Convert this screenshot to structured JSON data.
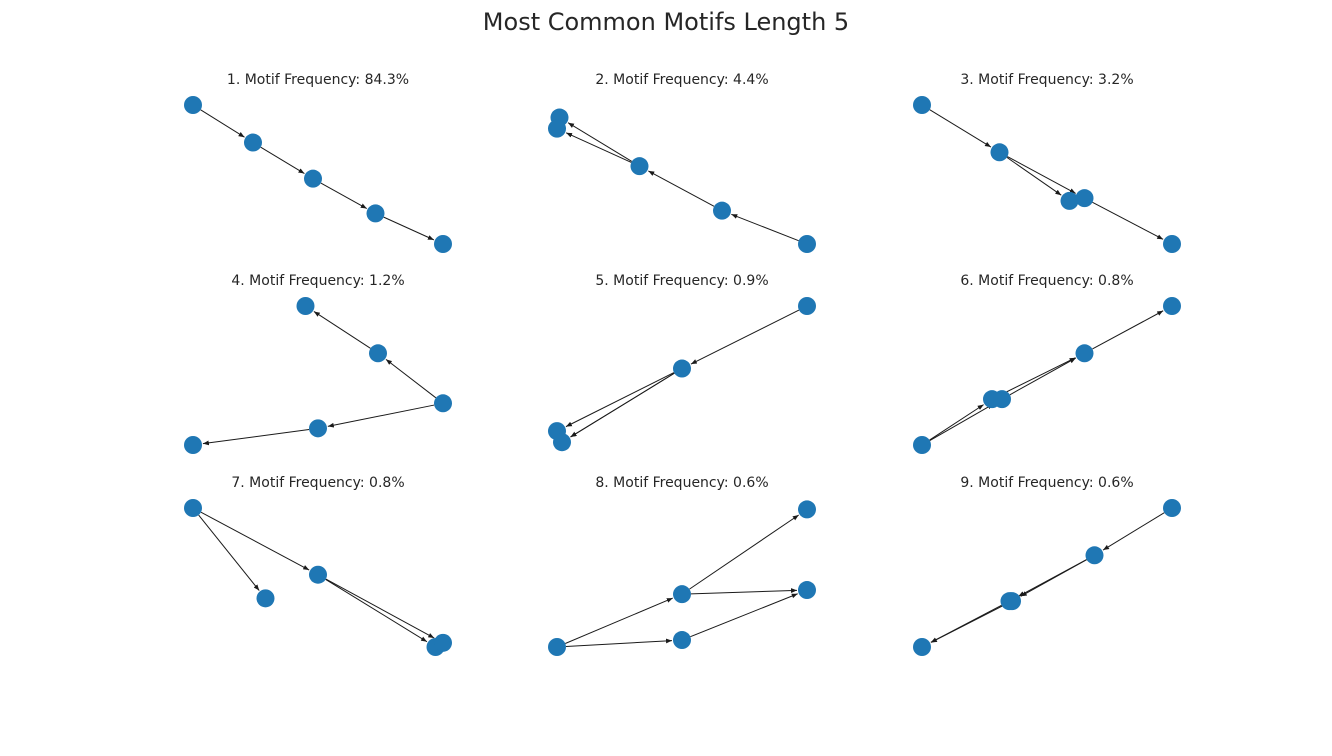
{
  "title": "Most Common Motifs Length 5",
  "style": {
    "node_color": "#1f77b4",
    "edge_color": "#1a1a1a"
  },
  "motifs": [
    {
      "label": "1. Motif Frequency: 84.3%",
      "nodes": [
        [
          0.0,
          1.0
        ],
        [
          0.24,
          0.73
        ],
        [
          0.48,
          0.47
        ],
        [
          0.73,
          0.22
        ],
        [
          1.0,
          0.0
        ]
      ],
      "edges": [
        [
          0,
          1
        ],
        [
          1,
          2
        ],
        [
          2,
          3
        ],
        [
          3,
          4
        ]
      ]
    },
    {
      "label": "2. Motif Frequency: 4.4%",
      "nodes": [
        [
          0.01,
          0.91
        ],
        [
          0.0,
          0.83
        ],
        [
          0.33,
          0.56
        ],
        [
          0.66,
          0.24
        ],
        [
          1.0,
          0.0
        ]
      ],
      "edges": [
        [
          2,
          0
        ],
        [
          2,
          1
        ],
        [
          3,
          2
        ],
        [
          4,
          3
        ]
      ]
    },
    {
      "label": "3. Motif Frequency: 3.2%",
      "nodes": [
        [
          0.0,
          1.0
        ],
        [
          0.31,
          0.66
        ],
        [
          0.59,
          0.31
        ],
        [
          0.65,
          0.33
        ],
        [
          1.0,
          0.0
        ]
      ],
      "edges": [
        [
          0,
          1
        ],
        [
          1,
          2
        ],
        [
          1,
          3
        ],
        [
          3,
          4
        ]
      ]
    },
    {
      "label": "4. Motif Frequency: 1.2%",
      "nodes": [
        [
          0.45,
          1.0
        ],
        [
          0.74,
          0.66
        ],
        [
          1.0,
          0.3
        ],
        [
          0.5,
          0.12
        ],
        [
          0.0,
          0.0
        ]
      ],
      "edges": [
        [
          1,
          0
        ],
        [
          2,
          1
        ],
        [
          2,
          3
        ],
        [
          3,
          4
        ]
      ]
    },
    {
      "label": "5. Motif Frequency: 0.9%",
      "nodes": [
        [
          1.0,
          1.0
        ],
        [
          0.5,
          0.55
        ],
        [
          0.0,
          0.1
        ],
        [
          0.02,
          0.02
        ]
      ],
      "edges": [
        [
          0,
          1
        ],
        [
          1,
          2
        ],
        [
          1,
          3
        ],
        [
          1,
          3
        ]
      ]
    },
    {
      "label": "6. Motif Frequency: 0.8%",
      "nodes": [
        [
          0.0,
          0.0
        ],
        [
          0.28,
          0.33
        ],
        [
          0.32,
          0.33
        ],
        [
          0.65,
          0.66
        ],
        [
          1.0,
          1.0
        ]
      ],
      "edges": [
        [
          0,
          1
        ],
        [
          0,
          2
        ],
        [
          1,
          3
        ],
        [
          2,
          3
        ],
        [
          3,
          4
        ]
      ]
    },
    {
      "label": "7. Motif Frequency: 0.8%",
      "nodes": [
        [
          0.0,
          1.0
        ],
        [
          0.29,
          0.35
        ],
        [
          0.5,
          0.52
        ],
        [
          0.97,
          0.0
        ],
        [
          1.0,
          0.03
        ]
      ],
      "edges": [
        [
          0,
          1
        ],
        [
          0,
          2
        ],
        [
          2,
          3
        ],
        [
          2,
          4
        ]
      ]
    },
    {
      "label": "8. Motif Frequency: 0.6%",
      "nodes": [
        [
          0.0,
          0.0
        ],
        [
          0.5,
          0.05
        ],
        [
          0.5,
          0.38
        ],
        [
          1.0,
          0.41
        ],
        [
          1.0,
          0.99
        ]
      ],
      "edges": [
        [
          0,
          1
        ],
        [
          0,
          2
        ],
        [
          1,
          3
        ],
        [
          2,
          3
        ],
        [
          2,
          4
        ]
      ]
    },
    {
      "label": "9. Motif Frequency: 0.6%",
      "nodes": [
        [
          1.0,
          1.0
        ],
        [
          0.69,
          0.66
        ],
        [
          0.36,
          0.33
        ],
        [
          0.35,
          0.33
        ],
        [
          0.0,
          0.0
        ]
      ],
      "edges": [
        [
          0,
          1
        ],
        [
          1,
          2
        ],
        [
          1,
          3
        ],
        [
          2,
          4
        ],
        [
          3,
          4
        ]
      ]
    }
  ]
}
